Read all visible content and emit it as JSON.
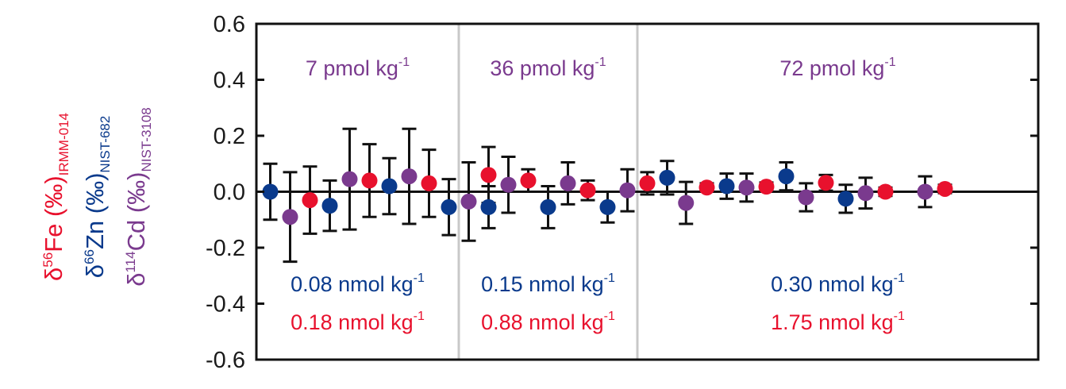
{
  "colors": {
    "fe": "#e8112d",
    "zn": "#0a3a8c",
    "cd": "#7a3a8e",
    "axis": "#111111",
    "divider": "#c8c8c8"
  },
  "chart_data": {
    "type": "scatter",
    "ylim": [
      -0.6,
      0.6
    ],
    "yticks": [
      "0.6",
      "0.4",
      "0.2",
      "0.0",
      "-0.2",
      "-0.4",
      "-0.6"
    ],
    "ytick_values": [
      0.6,
      0.4,
      0.2,
      0.0,
      -0.2,
      -0.4,
      -0.6
    ],
    "xlim": [
      0.3,
      39.7
    ],
    "grid": false,
    "zero_line": true,
    "dividers": [
      10.5,
      19.5
    ],
    "ylabels": [
      {
        "key": "fe",
        "prefix": "δ",
        "sup": "56",
        "element": "Fe",
        "unit": " (‰)",
        "sub": "IRMM-014"
      },
      {
        "key": "zn",
        "prefix": "δ",
        "sup": "66",
        "element": "Zn",
        "unit": " (‰)",
        "sub": "NIST-682"
      },
      {
        "key": "cd",
        "prefix": "δ",
        "sup": "114",
        "element": "Cd",
        "unit": " (‰)",
        "sub": "NIST-3108"
      }
    ],
    "panels": [
      {
        "cd_label": {
          "text": "7 pmol kg",
          "sup": "-1"
        },
        "zn_label": {
          "text": "0.08 nmol kg",
          "sup": "-1"
        },
        "fe_label": {
          "text": "0.18 nmol kg",
          "sup": "-1"
        }
      },
      {
        "cd_label": {
          "text": "36 pmol kg",
          "sup": "-1"
        },
        "zn_label": {
          "text": "0.15 nmol kg",
          "sup": "-1"
        },
        "fe_label": {
          "text": "0.88 nmol kg",
          "sup": "-1"
        }
      },
      {
        "cd_label": {
          "text": "72 pmol kg",
          "sup": "-1"
        },
        "zn_label": {
          "text": "0.30 nmol kg",
          "sup": "-1"
        },
        "fe_label": {
          "text": "1.75 nmol kg",
          "sup": "-1"
        }
      }
    ],
    "series": [
      {
        "name": "Zn",
        "key": "zn",
        "points": [
          {
            "x": 1,
            "y": 0.0,
            "err": 0.1
          },
          {
            "x": 4,
            "y": -0.05,
            "err": 0.09
          },
          {
            "x": 7,
            "y": 0.02,
            "err": 0.1
          },
          {
            "x": 10,
            "y": -0.055,
            "err": 0.1
          },
          {
            "x": 12,
            "y": -0.055,
            "err": 0.075
          },
          {
            "x": 15,
            "y": -0.055,
            "err": 0.075
          },
          {
            "x": 18,
            "y": -0.055,
            "err": 0.055
          },
          {
            "x": 21,
            "y": 0.05,
            "err": 0.06
          },
          {
            "x": 24,
            "y": 0.02,
            "err": 0.045
          },
          {
            "x": 27,
            "y": 0.055,
            "err": 0.05
          },
          {
            "x": 30,
            "y": -0.025,
            "err": 0.05
          }
        ]
      },
      {
        "name": "Cd",
        "key": "cd",
        "points": [
          {
            "x": 2,
            "y": -0.09,
            "err": 0.16
          },
          {
            "x": 5,
            "y": 0.045,
            "err": 0.18
          },
          {
            "x": 8,
            "y": 0.055,
            "err": 0.17
          },
          {
            "x": 11,
            "y": -0.035,
            "err": 0.14
          },
          {
            "x": 13,
            "y": 0.025,
            "err": 0.1
          },
          {
            "x": 16,
            "y": 0.03,
            "err": 0.075
          },
          {
            "x": 19,
            "y": 0.005,
            "err": 0.075
          },
          {
            "x": 21.95,
            "y": -0.04,
            "err": 0.075
          },
          {
            "x": 25,
            "y": 0.015,
            "err": 0.05
          },
          {
            "x": 28,
            "y": -0.02,
            "err": 0.05
          },
          {
            "x": 31,
            "y": -0.005,
            "err": 0.055
          },
          {
            "x": 34,
            "y": 0.0,
            "err": 0.055
          }
        ]
      },
      {
        "name": "Fe",
        "key": "fe",
        "points": [
          {
            "x": 3,
            "y": -0.03,
            "err": 0.12
          },
          {
            "x": 6,
            "y": 0.04,
            "err": 0.13
          },
          {
            "x": 9,
            "y": 0.03,
            "err": 0.12
          },
          {
            "x": 12,
            "y": 0.06,
            "err": 0.1
          },
          {
            "x": 14,
            "y": 0.04,
            "err": 0.04
          },
          {
            "x": 17,
            "y": 0.005,
            "err": 0.035
          },
          {
            "x": 20,
            "y": 0.03,
            "err": 0.04
          },
          {
            "x": 23,
            "y": 0.015,
            "err": 0.015
          },
          {
            "x": 26,
            "y": 0.018,
            "err": 0.015
          },
          {
            "x": 29,
            "y": 0.032,
            "err": 0.028
          },
          {
            "x": 32,
            "y": 0.0,
            "err": 0.015
          },
          {
            "x": 35,
            "y": 0.01,
            "err": 0.015
          }
        ]
      }
    ]
  }
}
